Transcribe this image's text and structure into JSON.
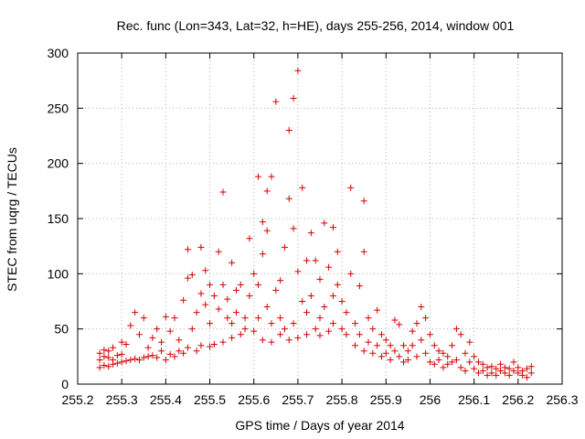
{
  "chart_data": {
    "type": "scatter",
    "title": "Rec. func (Lon=343, Lat=32, h=HE), days 255-256, 2014, window 001",
    "xlabel": "GPS time / Days of year 2014",
    "ylabel": "STEC from uqrg / TECUs",
    "xlim": [
      255.2,
      256.3
    ],
    "ylim": [
      0,
      300
    ],
    "x_ticks": [
      "255.2",
      "255.3",
      "255.4",
      "255.5",
      "255.6",
      "255.7",
      "255.8",
      "255.9",
      "256",
      "256.1",
      "256.2",
      "256.3"
    ],
    "y_ticks": [
      "0",
      "50",
      "100",
      "150",
      "200",
      "250",
      "300"
    ],
    "grid": true,
    "marker": "+",
    "color": "#d40000",
    "series": [
      {
        "points": [
          [
            255.25,
            15
          ],
          [
            255.25,
            22
          ],
          [
            255.25,
            28
          ],
          [
            255.26,
            17
          ],
          [
            255.26,
            25
          ],
          [
            255.26,
            31
          ],
          [
            255.27,
            16
          ],
          [
            255.27,
            24
          ],
          [
            255.27,
            30
          ],
          [
            255.28,
            18
          ],
          [
            255.28,
            22
          ],
          [
            255.28,
            33
          ],
          [
            255.29,
            19
          ],
          [
            255.29,
            26
          ],
          [
            255.3,
            20
          ],
          [
            255.3,
            27
          ],
          [
            255.3,
            38
          ],
          [
            255.31,
            21
          ],
          [
            255.31,
            36
          ],
          [
            255.32,
            22
          ],
          [
            255.32,
            53
          ],
          [
            255.33,
            23
          ],
          [
            255.33,
            65
          ],
          [
            255.34,
            22
          ],
          [
            255.34,
            45
          ],
          [
            255.35,
            24
          ],
          [
            255.35,
            60
          ],
          [
            255.36,
            25
          ],
          [
            255.36,
            33
          ],
          [
            255.37,
            26
          ],
          [
            255.37,
            42
          ],
          [
            255.38,
            24
          ],
          [
            255.38,
            50
          ],
          [
            255.39,
            30
          ],
          [
            255.39,
            38
          ],
          [
            255.4,
            22
          ],
          [
            255.4,
            61
          ],
          [
            255.41,
            27
          ],
          [
            255.41,
            48
          ],
          [
            255.42,
            25
          ],
          [
            255.42,
            60
          ],
          [
            255.43,
            30
          ],
          [
            255.43,
            40
          ],
          [
            255.44,
            76
          ],
          [
            255.44,
            28
          ],
          [
            255.45,
            122
          ],
          [
            255.45,
            96
          ],
          [
            255.45,
            33
          ],
          [
            255.46,
            99
          ],
          [
            255.46,
            50
          ],
          [
            255.47,
            30
          ],
          [
            255.47,
            65
          ],
          [
            255.48,
            124
          ],
          [
            255.48,
            82
          ],
          [
            255.48,
            35
          ],
          [
            255.49,
            103
          ],
          [
            255.49,
            72
          ],
          [
            255.5,
            34
          ],
          [
            255.5,
            90
          ],
          [
            255.5,
            55
          ],
          [
            255.51,
            36
          ],
          [
            255.51,
            80
          ],
          [
            255.52,
            120
          ],
          [
            255.52,
            68
          ],
          [
            255.53,
            174
          ],
          [
            255.53,
            38
          ],
          [
            255.53,
            90
          ],
          [
            255.54,
            60
          ],
          [
            255.54,
            77
          ],
          [
            255.55,
            110
          ],
          [
            255.55,
            42
          ],
          [
            255.55,
            55
          ],
          [
            255.56,
            85
          ],
          [
            255.56,
            65
          ],
          [
            255.57,
            45
          ],
          [
            255.57,
            90
          ],
          [
            255.58,
            60
          ],
          [
            255.58,
            50
          ],
          [
            255.59,
            132
          ],
          [
            255.59,
            80
          ],
          [
            255.6,
            48
          ],
          [
            255.6,
            100
          ],
          [
            255.61,
            188
          ],
          [
            255.61,
            60
          ],
          [
            255.61,
            90
          ],
          [
            255.62,
            147
          ],
          [
            255.62,
            118
          ],
          [
            255.62,
            40
          ],
          [
            255.63,
            175
          ],
          [
            255.63,
            139
          ],
          [
            255.63,
            70
          ],
          [
            255.64,
            188
          ],
          [
            255.64,
            55
          ],
          [
            255.64,
            38
          ],
          [
            255.65,
            256
          ],
          [
            255.65,
            85
          ],
          [
            255.66,
            94
          ],
          [
            255.66,
            45
          ],
          [
            255.66,
            60
          ],
          [
            255.67,
            124
          ],
          [
            255.67,
            50
          ],
          [
            255.68,
            230
          ],
          [
            255.68,
            168
          ],
          [
            255.68,
            40
          ],
          [
            255.69,
            259
          ],
          [
            255.69,
            141
          ],
          [
            255.69,
            55
          ],
          [
            255.7,
            284
          ],
          [
            255.7,
            102
          ],
          [
            255.7,
            42
          ],
          [
            255.71,
            178
          ],
          [
            255.71,
            75
          ],
          [
            255.72,
            112
          ],
          [
            255.72,
            45
          ],
          [
            255.72,
            65
          ],
          [
            255.73,
            137
          ],
          [
            255.73,
            80
          ],
          [
            255.74,
            50
          ],
          [
            255.74,
            112
          ],
          [
            255.75,
            95
          ],
          [
            255.75,
            44
          ],
          [
            255.75,
            60
          ],
          [
            255.76,
            146
          ],
          [
            255.76,
            70
          ],
          [
            255.77,
            106
          ],
          [
            255.77,
            48
          ],
          [
            255.78,
            142
          ],
          [
            255.78,
            80
          ],
          [
            255.78,
            55
          ],
          [
            255.79,
            120
          ],
          [
            255.79,
            90
          ],
          [
            255.8,
            50
          ],
          [
            255.8,
            75
          ],
          [
            255.81,
            65
          ],
          [
            255.81,
            45
          ],
          [
            255.82,
            178
          ],
          [
            255.82,
            100
          ],
          [
            255.83,
            55
          ],
          [
            255.83,
            35
          ],
          [
            255.84,
            89
          ],
          [
            255.84,
            45
          ],
          [
            255.85,
            166
          ],
          [
            255.85,
            120
          ],
          [
            255.85,
            30
          ],
          [
            255.86,
            60
          ],
          [
            255.86,
            38
          ],
          [
            255.87,
            50
          ],
          [
            255.87,
            28
          ],
          [
            255.88,
            67
          ],
          [
            255.88,
            35
          ],
          [
            255.89,
            45
          ],
          [
            255.89,
            25
          ],
          [
            255.9,
            40
          ],
          [
            255.9,
            28
          ],
          [
            255.91,
            35
          ],
          [
            255.91,
            22
          ],
          [
            255.92,
            58
          ],
          [
            255.92,
            30
          ],
          [
            255.93,
            54
          ],
          [
            255.93,
            25
          ],
          [
            255.94,
            35
          ],
          [
            255.94,
            20
          ],
          [
            255.95,
            30
          ],
          [
            255.95,
            22
          ],
          [
            255.96,
            48
          ],
          [
            255.96,
            35
          ],
          [
            255.97,
            55
          ],
          [
            255.97,
            25
          ],
          [
            255.98,
            70
          ],
          [
            255.98,
            40
          ],
          [
            255.99,
            60
          ],
          [
            255.99,
            28
          ],
          [
            256.0,
            45
          ],
          [
            256.0,
            20
          ],
          [
            256.01,
            35
          ],
          [
            256.01,
            18
          ],
          [
            256.02,
            30
          ],
          [
            256.02,
            22
          ],
          [
            256.03,
            28
          ],
          [
            256.03,
            15
          ],
          [
            256.04,
            25
          ],
          [
            256.04,
            18
          ],
          [
            256.05,
            35
          ],
          [
            256.05,
            20
          ],
          [
            256.06,
            50
          ],
          [
            256.06,
            22
          ],
          [
            256.07,
            45
          ],
          [
            256.07,
            15
          ],
          [
            256.08,
            28
          ],
          [
            256.08,
            12
          ],
          [
            256.09,
            38
          ],
          [
            256.09,
            20
          ],
          [
            256.1,
            25
          ],
          [
            256.1,
            14
          ],
          [
            256.11,
            20
          ],
          [
            256.11,
            10
          ],
          [
            256.12,
            18
          ],
          [
            256.12,
            12
          ],
          [
            256.13,
            15
          ],
          [
            256.13,
            8
          ],
          [
            256.14,
            16
          ],
          [
            256.14,
            10
          ],
          [
            256.15,
            14
          ],
          [
            256.15,
            8
          ],
          [
            256.16,
            12
          ],
          [
            256.16,
            18
          ],
          [
            256.17,
            10
          ],
          [
            256.17,
            15
          ],
          [
            256.18,
            14
          ],
          [
            256.18,
            8
          ],
          [
            256.19,
            12
          ],
          [
            256.19,
            20
          ],
          [
            256.2,
            10
          ],
          [
            256.2,
            15
          ],
          [
            256.21,
            12
          ],
          [
            256.21,
            8
          ],
          [
            256.22,
            14
          ],
          [
            256.22,
            6
          ],
          [
            256.23,
            10
          ],
          [
            256.23,
            16
          ]
        ]
      }
    ]
  }
}
